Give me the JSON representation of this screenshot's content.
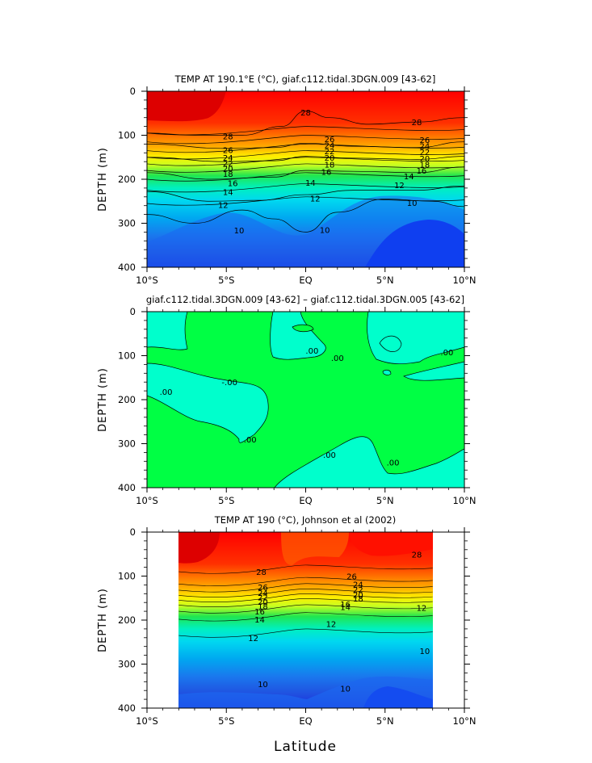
{
  "chart_data": [
    {
      "type": "contour",
      "title": "TEMP AT 190.1°E (°C), giaf.c112.tidal.3DGN.009 [43-62]",
      "xlabel": "",
      "ylabel": "DEPTH (m)",
      "xlim": [
        -10,
        10
      ],
      "ylim": [
        400,
        0
      ],
      "x_ticks": [
        -10,
        -5,
        0,
        5,
        10
      ],
      "x_tick_labels": [
        "10°S",
        "5°S",
        "EQ",
        "5°N",
        "10°N"
      ],
      "y_ticks": [
        0,
        100,
        200,
        300,
        400
      ],
      "y_tick_labels": [
        "0",
        "100",
        "200",
        "300",
        "400"
      ],
      "contour_levels": [
        10,
        12,
        14,
        16,
        18,
        20,
        22,
        24,
        26,
        28
      ],
      "labeled_isotherms": [
        {
          "value": 28,
          "points": [
            [
              -10,
              95
            ],
            [
              -7,
              100
            ],
            [
              -4,
              100
            ],
            [
              -1.5,
              80
            ],
            [
              0,
              45
            ],
            [
              1.5,
              60
            ],
            [
              4,
              75
            ],
            [
              7,
              70
            ],
            [
              10,
              60
            ]
          ]
        },
        {
          "value": 24,
          "points": [
            [
              -10,
              120
            ],
            [
              -5,
              130
            ],
            [
              -2,
              128
            ],
            [
              0,
              118
            ],
            [
              3,
              125
            ],
            [
              7,
              128
            ],
            [
              10,
              115
            ]
          ]
        },
        {
          "value": 20,
          "points": [
            [
              -10,
              150
            ],
            [
              -5,
              160
            ],
            [
              -2,
              158
            ],
            [
              0,
              148
            ],
            [
              3,
              152
            ],
            [
              7,
              155
            ],
            [
              10,
              148
            ]
          ]
        },
        {
          "value": 16,
          "points": [
            [
              -10,
              185
            ],
            [
              -6,
              200
            ],
            [
              -2,
              195
            ],
            [
              0,
              180
            ],
            [
              3,
              182
            ],
            [
              7,
              185
            ],
            [
              10,
              172
            ]
          ]
        },
        {
          "value": 12,
          "points": [
            [
              -10,
              228
            ],
            [
              -6,
              250
            ],
            [
              -3,
              248
            ],
            [
              0,
              235
            ],
            [
              3,
              225
            ],
            [
              7,
              225
            ],
            [
              10,
              215
            ]
          ]
        },
        {
          "value": 10,
          "points": [
            [
              -10,
              280
            ],
            [
              -7,
              300
            ],
            [
              -4,
              270
            ],
            [
              -2,
              290
            ],
            [
              0,
              320
            ],
            [
              2,
              275
            ],
            [
              5,
              245
            ],
            [
              8,
              250
            ],
            [
              10,
              262
            ]
          ]
        }
      ],
      "contour_labels": [
        {
          "text": "28",
          "x": -4.9,
          "y": 102
        },
        {
          "text": "28",
          "x": 0,
          "y": 48
        },
        {
          "text": "28",
          "x": 7,
          "y": 70
        },
        {
          "text": "26",
          "x": -4.9,
          "y": 133
        },
        {
          "text": "24",
          "x": -4.9,
          "y": 150
        },
        {
          "text": "22",
          "x": -4.9,
          "y": 163
        },
        {
          "text": "20",
          "x": -4.9,
          "y": 175
        },
        {
          "text": "18",
          "x": -4.9,
          "y": 187
        },
        {
          "text": "16",
          "x": -4.6,
          "y": 208
        },
        {
          "text": "14",
          "x": -4.9,
          "y": 228
        },
        {
          "text": "12",
          "x": -5.2,
          "y": 258
        },
        {
          "text": "10",
          "x": -4.2,
          "y": 316
        },
        {
          "text": "26",
          "x": 1.5,
          "y": 108
        },
        {
          "text": "24",
          "x": 1.5,
          "y": 122
        },
        {
          "text": "22",
          "x": 1.5,
          "y": 136
        },
        {
          "text": "20",
          "x": 1.5,
          "y": 150
        },
        {
          "text": "18",
          "x": 1.5,
          "y": 166
        },
        {
          "text": "16",
          "x": 1.3,
          "y": 183
        },
        {
          "text": "14",
          "x": 0.3,
          "y": 207
        },
        {
          "text": "12",
          "x": 0.6,
          "y": 243
        },
        {
          "text": "10",
          "x": 1.2,
          "y": 315
        },
        {
          "text": "26",
          "x": 7.5,
          "y": 110
        },
        {
          "text": "24",
          "x": 7.5,
          "y": 124
        },
        {
          "text": "22",
          "x": 7.5,
          "y": 138
        },
        {
          "text": "20",
          "x": 7.5,
          "y": 152
        },
        {
          "text": "18",
          "x": 7.5,
          "y": 166
        },
        {
          "text": "16",
          "x": 7.3,
          "y": 180
        },
        {
          "text": "14",
          "x": 6.5,
          "y": 193
        },
        {
          "text": "12",
          "x": 5.9,
          "y": 213
        },
        {
          "text": "10",
          "x": 6.7,
          "y": 253
        }
      ]
    },
    {
      "type": "contour",
      "title": "giaf.c112.tidal.3DGN.009 [43-62] – giaf.c112.tidal.3DGN.005 [43-62]",
      "xlabel": "",
      "ylabel": "DEPTH (m)",
      "xlim": [
        -10,
        10
      ],
      "ylim": [
        400,
        0
      ],
      "x_ticks": [
        -10,
        -5,
        0,
        5,
        10
      ],
      "x_tick_labels": [
        "10°S",
        "5°S",
        "EQ",
        "5°N",
        "10°N"
      ],
      "y_ticks": [
        0,
        100,
        200,
        300,
        400
      ],
      "y_tick_labels": [
        "0",
        "100",
        "200",
        "300",
        "400"
      ],
      "contour_levels": [
        0.0
      ],
      "contour_labels": [
        {
          "text": ".00",
          "x": 0.4,
          "y": 88
        },
        {
          "text": ".00",
          "x": 2.0,
          "y": 105
        },
        {
          "text": ".00",
          "x": 8.9,
          "y": 92
        },
        {
          "text": "-.00",
          "x": -4.8,
          "y": 160
        },
        {
          "text": ".00",
          "x": -8.8,
          "y": 182
        },
        {
          "text": ".00",
          "x": -3.5,
          "y": 290
        },
        {
          "text": ".00",
          "x": 1.5,
          "y": 325
        },
        {
          "text": ".00",
          "x": 5.5,
          "y": 342
        }
      ]
    },
    {
      "type": "contour",
      "title": "TEMP AT 190 (°C), Johnson et al (2002)",
      "xlabel": "Latitude",
      "ylabel": "DEPTH (m)",
      "xlim": [
        -10,
        10
      ],
      "ylim": [
        400,
        0
      ],
      "data_x_range": [
        -8,
        8
      ],
      "data_y_range": [
        0,
        400
      ],
      "x_ticks": [
        -10,
        -5,
        0,
        5,
        10
      ],
      "x_tick_labels": [
        "10°S",
        "5°S",
        "EQ",
        "5°N",
        "10°N"
      ],
      "y_ticks": [
        0,
        100,
        200,
        300,
        400
      ],
      "y_tick_labels": [
        "0",
        "100",
        "200",
        "300",
        "400"
      ],
      "contour_levels": [
        10,
        12,
        14,
        16,
        18,
        20,
        22,
        24,
        26,
        28
      ],
      "contour_labels": [
        {
          "text": "28",
          "x": -2.8,
          "y": 90
        },
        {
          "text": "28",
          "x": 7,
          "y": 50
        },
        {
          "text": "26",
          "x": -2.7,
          "y": 125
        },
        {
          "text": "24",
          "x": -2.7,
          "y": 138
        },
        {
          "text": "22",
          "x": -2.7,
          "y": 148
        },
        {
          "text": "20",
          "x": -2.7,
          "y": 158
        },
        {
          "text": "18",
          "x": -2.7,
          "y": 168
        },
        {
          "text": "16",
          "x": -2.9,
          "y": 180
        },
        {
          "text": "14",
          "x": -2.9,
          "y": 198
        },
        {
          "text": "12",
          "x": -3.3,
          "y": 240
        },
        {
          "text": "10",
          "x": -2.7,
          "y": 345
        },
        {
          "text": "26",
          "x": 2.9,
          "y": 100
        },
        {
          "text": "24",
          "x": 3.3,
          "y": 118
        },
        {
          "text": "22",
          "x": 3.3,
          "y": 130
        },
        {
          "text": "20",
          "x": 3.3,
          "y": 142
        },
        {
          "text": "18",
          "x": 3.3,
          "y": 150
        },
        {
          "text": "16",
          "x": 2.5,
          "y": 163
        },
        {
          "text": "14",
          "x": 2.5,
          "y": 170
        },
        {
          "text": "12",
          "x": 1.6,
          "y": 208
        },
        {
          "text": "12",
          "x": 7.3,
          "y": 172
        },
        {
          "text": "10",
          "x": 7.5,
          "y": 270
        },
        {
          "text": "10",
          "x": 2.5,
          "y": 355
        }
      ]
    }
  ]
}
